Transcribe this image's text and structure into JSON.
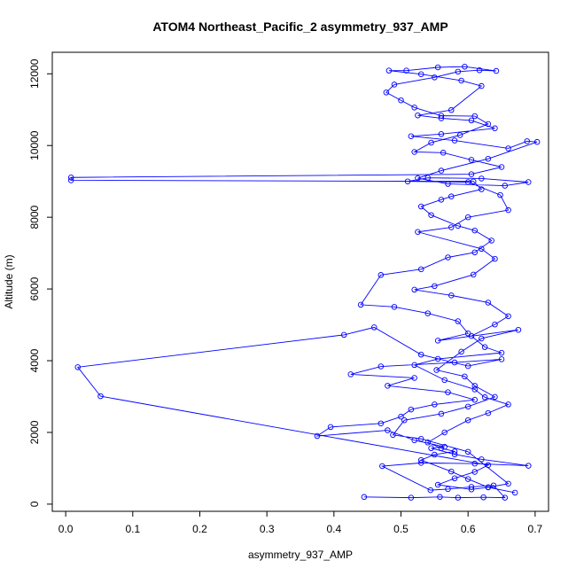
{
  "chart_data": {
    "type": "line",
    "title": "ATOM4 Northeast_Pacific_2 asymmetry_937_AMP",
    "xlabel": "asymmetry_937_AMP",
    "ylabel": "Altitude (m)",
    "xlim": [
      -0.02,
      0.72
    ],
    "ylim": [
      -200,
      12600
    ],
    "xticks": [
      0.0,
      0.1,
      0.2,
      0.3,
      0.4,
      0.5,
      0.6,
      0.7
    ],
    "xtick_labels": [
      "0.0",
      "0.1",
      "0.2",
      "0.3",
      "0.4",
      "0.5",
      "0.6",
      "0.7"
    ],
    "yticks": [
      0,
      2000,
      4000,
      6000,
      8000,
      10000,
      12000
    ],
    "ytick_labels": [
      "0",
      "2000",
      "4000",
      "6000",
      "8000",
      "10000",
      "12000"
    ],
    "grid": false,
    "marker": "open-circle",
    "color": "#0000ff",
    "series": [
      {
        "points": [
          [
            0.445,
            200
          ],
          [
            0.515,
            180
          ],
          [
            0.558,
            200
          ],
          [
            0.585,
            180
          ],
          [
            0.623,
            190
          ],
          [
            0.655,
            180
          ],
          [
            0.638,
            520
          ],
          [
            0.605,
            480
          ],
          [
            0.57,
            420
          ],
          [
            0.544,
            390
          ],
          [
            0.472,
            1060
          ],
          [
            0.53,
            1150
          ],
          [
            0.61,
            1130
          ],
          [
            0.69,
            1070
          ],
          [
            0.62,
            1250
          ],
          [
            0.58,
            1390
          ],
          [
            0.545,
            1560
          ],
          [
            0.565,
            1600
          ],
          [
            0.52,
            1780
          ],
          [
            0.48,
            2060
          ],
          [
            0.375,
            1900
          ],
          [
            0.395,
            2150
          ],
          [
            0.47,
            2250
          ],
          [
            0.5,
            2440
          ],
          [
            0.515,
            2640
          ],
          [
            0.55,
            2780
          ],
          [
            0.61,
            2910
          ],
          [
            0.57,
            3120
          ],
          [
            0.48,
            3300
          ],
          [
            0.52,
            3520
          ],
          [
            0.425,
            3620
          ],
          [
            0.47,
            3840
          ],
          [
            0.58,
            3950
          ],
          [
            0.65,
            4040
          ],
          [
            0.6,
            3850
          ],
          [
            0.53,
            4170
          ],
          [
            0.46,
            4930
          ],
          [
            0.415,
            4720
          ],
          [
            0.018,
            3820
          ],
          [
            0.052,
            3010
          ],
          [
            0.63,
            1090
          ],
          [
            0.61,
            900
          ],
          [
            0.58,
            720
          ],
          [
            0.555,
            540
          ],
          [
            0.605,
            410
          ],
          [
            0.63,
            470
          ],
          [
            0.66,
            570
          ],
          [
            0.6,
            1460
          ],
          [
            0.53,
            1820
          ],
          [
            0.488,
            1930
          ],
          [
            0.505,
            2340
          ],
          [
            0.56,
            2520
          ],
          [
            0.6,
            2720
          ],
          [
            0.64,
            2990
          ],
          [
            0.61,
            3300
          ],
          [
            0.595,
            3560
          ],
          [
            0.553,
            3740
          ],
          [
            0.59,
            4250
          ],
          [
            0.62,
            4620
          ],
          [
            0.675,
            4860
          ],
          [
            0.555,
            4560
          ],
          [
            0.6,
            4760
          ],
          [
            0.585,
            5100
          ],
          [
            0.54,
            5320
          ],
          [
            0.49,
            5500
          ],
          [
            0.44,
            5560
          ],
          [
            0.47,
            6390
          ],
          [
            0.53,
            6550
          ],
          [
            0.57,
            6880
          ],
          [
            0.61,
            7020
          ],
          [
            0.635,
            7350
          ],
          [
            0.61,
            7630
          ],
          [
            0.585,
            7760
          ],
          [
            0.545,
            8060
          ],
          [
            0.53,
            8300
          ],
          [
            0.56,
            8490
          ],
          [
            0.575,
            8580
          ],
          [
            0.62,
            8780
          ],
          [
            0.608,
            9000
          ],
          [
            0.008,
            9030
          ],
          [
            0.008,
            9110
          ],
          [
            0.605,
            9200
          ],
          [
            0.65,
            9400
          ],
          [
            0.605,
            9600
          ],
          [
            0.563,
            9800
          ],
          [
            0.52,
            9820
          ],
          [
            0.545,
            10080
          ],
          [
            0.588,
            10290
          ],
          [
            0.63,
            10600
          ],
          [
            0.61,
            10820
          ],
          [
            0.56,
            10830
          ],
          [
            0.52,
            11060
          ],
          [
            0.5,
            11260
          ],
          [
            0.478,
            11480
          ],
          [
            0.49,
            11700
          ],
          [
            0.55,
            11900
          ],
          [
            0.585,
            12060
          ],
          [
            0.617,
            12100
          ],
          [
            0.642,
            12080
          ],
          [
            0.595,
            12200
          ],
          [
            0.555,
            12180
          ],
          [
            0.508,
            12090
          ],
          [
            0.482,
            12090
          ],
          [
            0.53,
            11990
          ],
          [
            0.59,
            11810
          ],
          [
            0.62,
            11660
          ],
          [
            0.575,
            10990
          ],
          [
            0.525,
            10840
          ],
          [
            0.56,
            10760
          ],
          [
            0.605,
            10700
          ],
          [
            0.64,
            10480
          ],
          [
            0.56,
            10320
          ],
          [
            0.515,
            10260
          ],
          [
            0.58,
            10140
          ],
          [
            0.66,
            9920
          ],
          [
            0.688,
            10120
          ],
          [
            0.703,
            10100
          ],
          [
            0.63,
            9630
          ],
          [
            0.56,
            9300
          ],
          [
            0.525,
            9090
          ],
          [
            0.57,
            8930
          ],
          [
            0.655,
            8880
          ],
          [
            0.69,
            8980
          ],
          [
            0.62,
            9080
          ],
          [
            0.54,
            9100
          ],
          [
            0.51,
            9000
          ],
          [
            0.6,
            8980
          ],
          [
            0.648,
            8620
          ],
          [
            0.66,
            8200
          ],
          [
            0.6,
            8000
          ],
          [
            0.575,
            7720
          ],
          [
            0.525,
            7590
          ],
          [
            0.62,
            7120
          ],
          [
            0.64,
            6840
          ],
          [
            0.608,
            6400
          ],
          [
            0.55,
            6080
          ],
          [
            0.52,
            5980
          ],
          [
            0.575,
            5820
          ],
          [
            0.63,
            5620
          ],
          [
            0.66,
            5240
          ],
          [
            0.64,
            5010
          ],
          [
            0.605,
            4690
          ],
          [
            0.625,
            4380
          ],
          [
            0.65,
            4220
          ],
          [
            0.555,
            4050
          ],
          [
            0.52,
            3880
          ],
          [
            0.565,
            3460
          ],
          [
            0.61,
            3200
          ],
          [
            0.625,
            2980
          ],
          [
            0.66,
            2780
          ],
          [
            0.63,
            2540
          ],
          [
            0.6,
            2340
          ],
          [
            0.565,
            2000
          ],
          [
            0.54,
            1720
          ],
          [
            0.56,
            1560
          ],
          [
            0.58,
            1470
          ],
          [
            0.55,
            1380
          ],
          [
            0.53,
            1230
          ],
          [
            0.575,
            910
          ],
          [
            0.6,
            700
          ],
          [
            0.63,
            470
          ],
          [
            0.67,
            320
          ]
        ]
      }
    ]
  }
}
